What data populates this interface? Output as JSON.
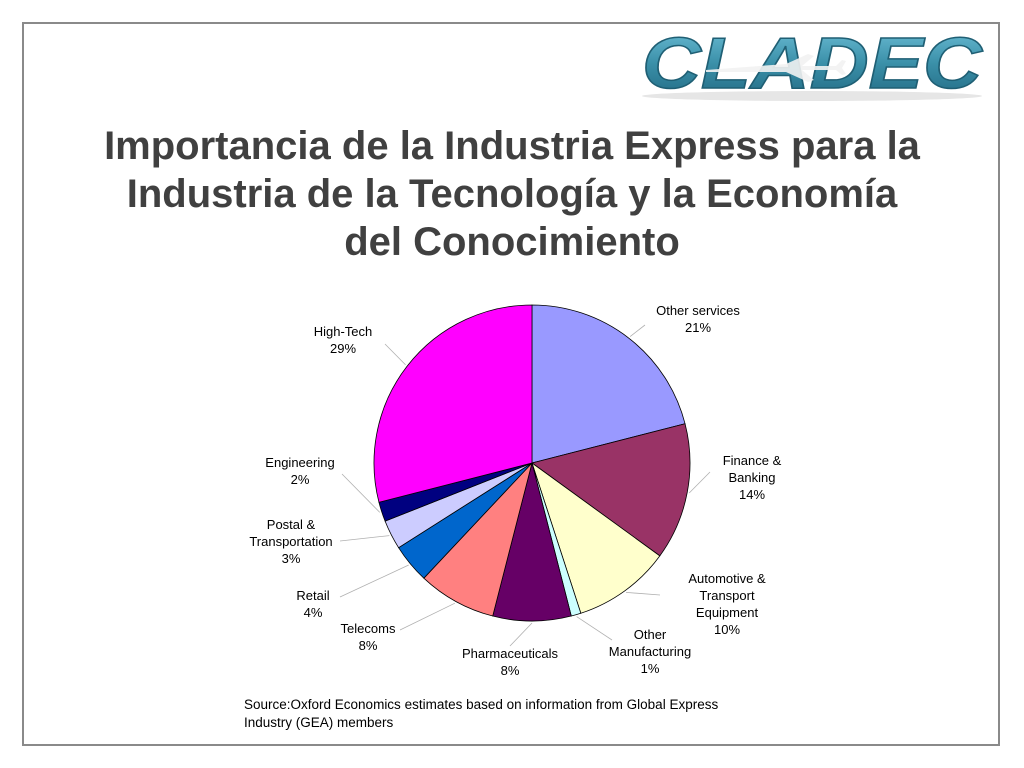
{
  "slide": {
    "logo_text": "CLADEC",
    "title_lines": [
      "Importancia de la Industria Express para la",
      "Industria de la Tecnología y la Economía",
      "del Conocimiento"
    ],
    "source_lines": [
      "Source:Oxford Economics estimates based on information from Global Express",
      "Industry (GEA) members"
    ]
  },
  "colors": {
    "title": "#404040",
    "frame": "#8a8a8a",
    "logo_fill": "#3a8fa8"
  },
  "chart_data": {
    "type": "pie",
    "title": "",
    "unit": "%",
    "slices": [
      {
        "label_lines": [
          "Other services",
          "21%"
        ],
        "value": 21,
        "color": "#9999ff"
      },
      {
        "label_lines": [
          "Finance &",
          "Banking",
          "14%"
        ],
        "value": 14,
        "color": "#993366"
      },
      {
        "label_lines": [
          "Automotive &",
          "Transport",
          "Equipment",
          "10%"
        ],
        "value": 10,
        "color": "#ffffcc"
      },
      {
        "label_lines": [
          "Other",
          "Manufacturing",
          "1%"
        ],
        "value": 1,
        "color": "#ccffff"
      },
      {
        "label_lines": [
          "Pharmaceuticals",
          "8%"
        ],
        "value": 8,
        "color": "#660066"
      },
      {
        "label_lines": [
          "Telecoms",
          "8%"
        ],
        "value": 8,
        "color": "#ff8080"
      },
      {
        "label_lines": [
          "Retail",
          "4%"
        ],
        "value": 4,
        "color": "#0066cc"
      },
      {
        "label_lines": [
          "Postal &",
          "Transportation",
          "3%"
        ],
        "value": 3,
        "color": "#ccccff"
      },
      {
        "label_lines": [
          "Engineering",
          "2%"
        ],
        "value": 2,
        "color": "#000080"
      },
      {
        "label_lines": [
          "High-Tech",
          "29%"
        ],
        "value": 29,
        "color": "#ff00ff"
      }
    ]
  }
}
